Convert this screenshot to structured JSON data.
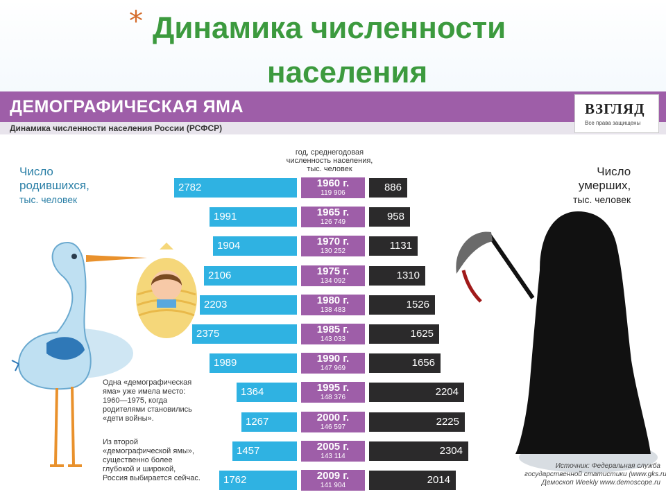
{
  "slide": {
    "star": "*",
    "title_line1": "Динамика численности",
    "title_line2": "населения"
  },
  "banner": {
    "title": "ДЕМОГРАФИЧЕСКАЯ ЯМА",
    "subtitle": "Динамика численности населения России (РСФСР)",
    "logo": "ВЗГЛЯД",
    "logo_sub": "Все права защищены"
  },
  "births_label": {
    "line1": "Число",
    "line2": "родившихся,",
    "line3": "тыс. человек"
  },
  "deaths_label": {
    "line1": "Число",
    "line2": "умерших,",
    "line3": "тыс. человек"
  },
  "header": {
    "line1": "год, среднегодовая",
    "line2": "численность населения,",
    "line3": "тыс. человек"
  },
  "notes": [
    [
      "Одна «демографическая",
      "яма» уже имела место:",
      "1960—1975, когда",
      "родителями становились",
      "«дети войны»."
    ],
    [
      "Из второй",
      "«демографической ямы»,",
      "существенно более",
      "глубокой и широкой,",
      "Россия выбирается сейчас."
    ]
  ],
  "source": {
    "line1": "Источник: Федеральная служба",
    "line2": "государственной статистики (www.gks.ru),",
    "line3": "Демоскоп Weekly www.demoscope.ru"
  },
  "colors": {
    "births": "#2fb2e2",
    "years": "#9e5ea8",
    "deaths": "#2b2a2b",
    "title": "#3c9a3e"
  },
  "chart_data": {
    "type": "bar",
    "title": "ДЕМОГРАФИЧЕСКАЯ ЯМА",
    "categories": [
      "1960 г.",
      "1965 г.",
      "1970 г.",
      "1975 г.",
      "1980 г.",
      "1985 г.",
      "1990 г.",
      "1995 г.",
      "2000 г.",
      "2005 г.",
      "2009 г."
    ],
    "population": [
      "119 906",
      "126 749",
      "130 252",
      "134 092",
      "138 483",
      "143 033",
      "147 969",
      "148 376",
      "146 597",
      "143 114",
      "141 904"
    ],
    "series": [
      {
        "name": "Число родившихся, тыс. человек",
        "values": [
          2782,
          1991,
          1904,
          2106,
          2203,
          2375,
          1989,
          1364,
          1267,
          1457,
          1762
        ]
      },
      {
        "name": "Число умерших, тыс. человек",
        "values": [
          886,
          958,
          1131,
          1310,
          1526,
          1625,
          1656,
          2204,
          2225,
          2304,
          2014
        ]
      }
    ]
  }
}
